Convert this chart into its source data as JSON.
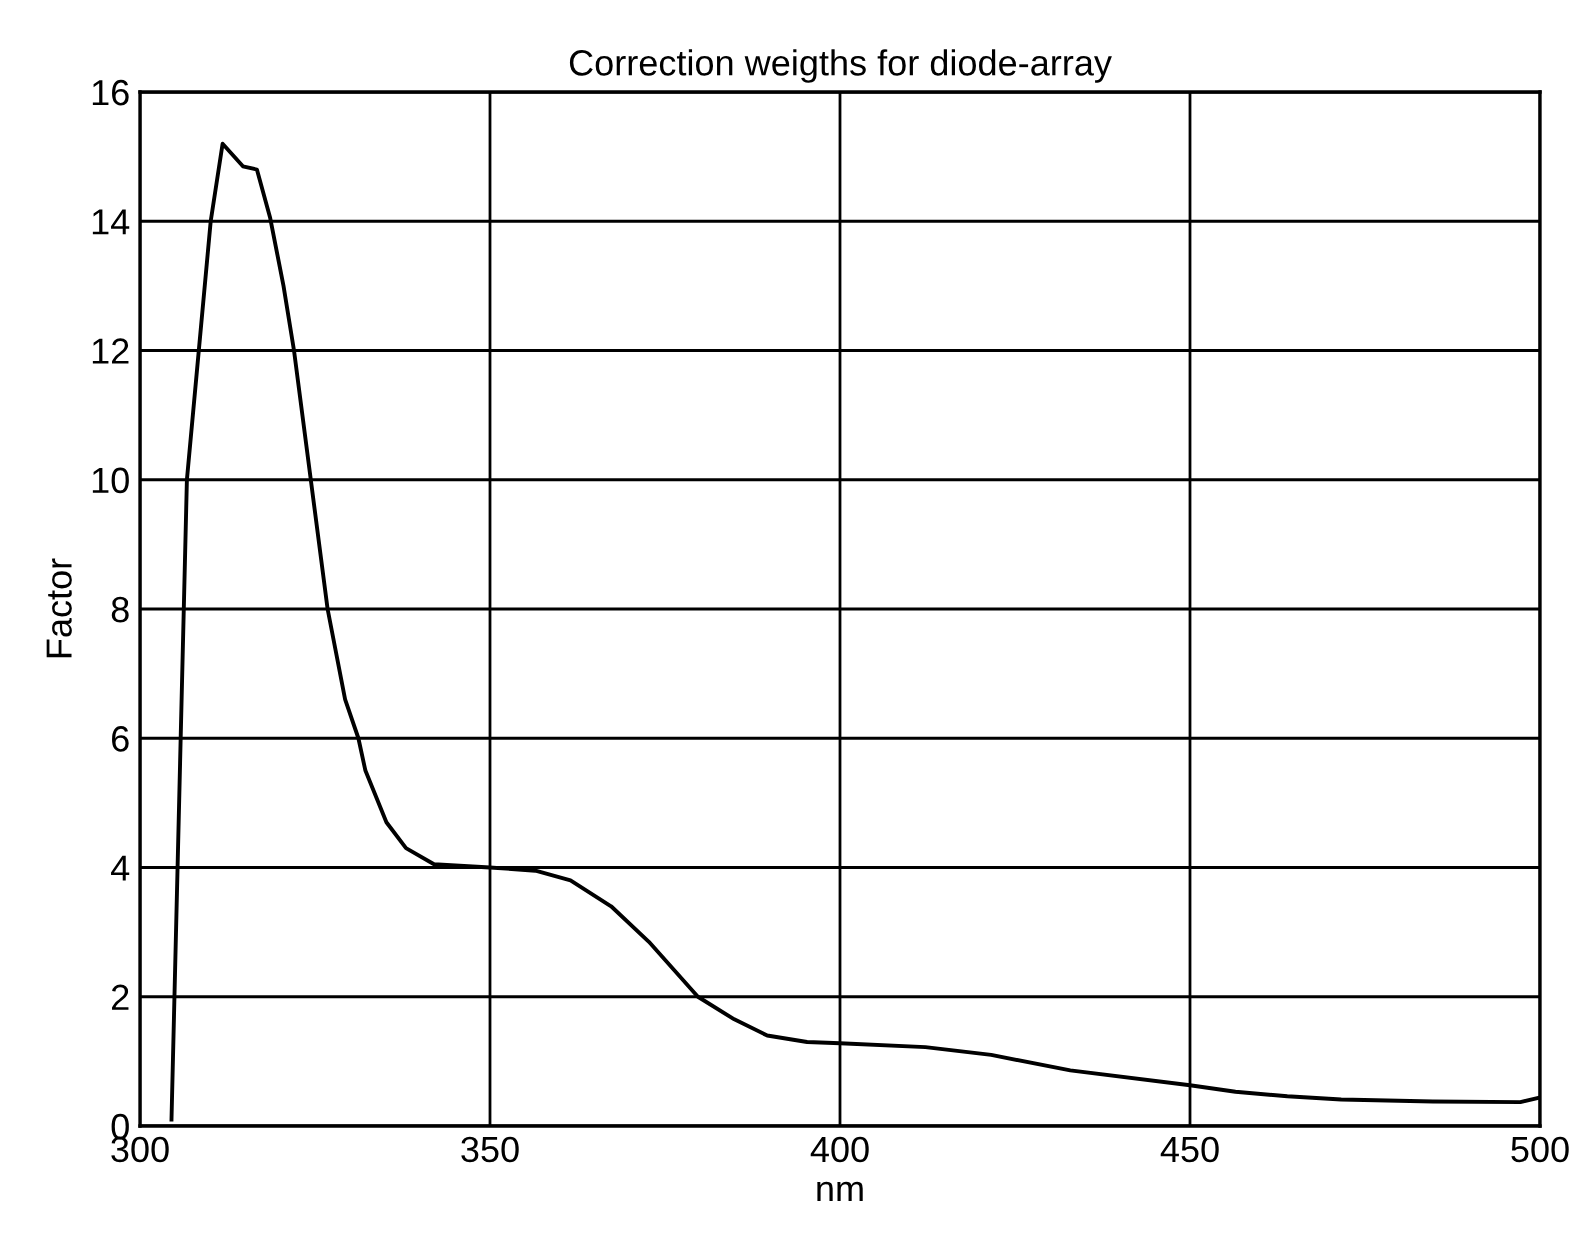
{
  "chart_data": {
    "type": "line",
    "title": "Correction weigths for diode-array",
    "xlabel": "nm",
    "ylabel": "Factor",
    "series": [
      {
        "color": "#000000",
        "x": [
          304.5,
          306.7,
          308.4,
          310.1,
          311.8,
          314.7,
          316.7,
          318.6,
          320.5,
          322,
          324.4,
          326.8,
          329.3,
          331.2,
          332.2,
          335.2,
          338,
          342,
          350,
          356.5,
          361.5,
          367.3,
          372.7,
          379.7,
          384.9,
          389.6,
          395.3,
          400,
          412.2,
          421.6,
          432.9,
          450,
          456.5,
          463.9,
          471.6,
          484.7,
          497.2,
          500
        ],
        "values": [
          0.1,
          10,
          12,
          14,
          15.2,
          14.85,
          14.8,
          14.05,
          13,
          12,
          10,
          8,
          6.6,
          6,
          5.5,
          4.7,
          4.3,
          4.05,
          4,
          3.95,
          3.8,
          3.4,
          2.85,
          2,
          1.65,
          1.4,
          1.3,
          1.28,
          1.22,
          1.1,
          0.86,
          0.63,
          0.53,
          0.46,
          0.41,
          0.38,
          0.37,
          0.44
        ]
      }
    ],
    "xlim": [
      300,
      500
    ],
    "ylim": [
      0,
      16
    ],
    "xticks": [
      300,
      350,
      400,
      450,
      500
    ],
    "yticks": [
      0,
      2,
      4,
      6,
      8,
      10,
      12,
      14,
      16
    ],
    "grid": true,
    "marker": "none",
    "line_style": "solid"
  }
}
